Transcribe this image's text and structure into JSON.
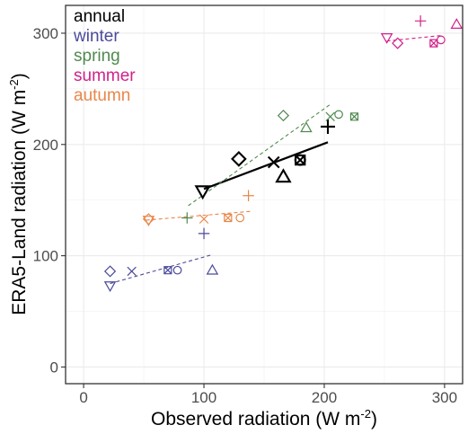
{
  "chart_data": {
    "type": "scatter",
    "xlabel": "Observed radiation (W m",
    "xlabel_sup": "-2",
    "xlabel_end": ")",
    "ylabel": "ERA5-Land radiation (W m",
    "ylabel_sup": "-2",
    "ylabel_end": ")",
    "xlim": [
      -15,
      315
    ],
    "ylim": [
      -15,
      325
    ],
    "x_ticks": [
      0,
      100,
      200,
      300
    ],
    "y_ticks": [
      0,
      100,
      200,
      300
    ],
    "grid": true,
    "legend_placement": "top-left",
    "series": [
      {
        "name": "annual",
        "color": "#000000",
        "fit_style": "solid",
        "fit": [
          [
            100,
            160
          ],
          [
            203,
            202
          ]
        ],
        "points": [
          {
            "x": 99,
            "y": 158,
            "shape": "triangle-down"
          },
          {
            "x": 129,
            "y": 187,
            "shape": "diamond"
          },
          {
            "x": 158,
            "y": 184,
            "shape": "x"
          },
          {
            "x": 166,
            "y": 171,
            "shape": "triangle-up"
          },
          {
            "x": 180,
            "y": 186,
            "shape": "circle"
          },
          {
            "x": 180,
            "y": 186,
            "shape": "square-x"
          },
          {
            "x": 203,
            "y": 216,
            "shape": "plus"
          }
        ]
      },
      {
        "name": "winter",
        "color": "#4b4a9a",
        "fit_style": "dashed",
        "fit": [
          [
            22,
            75
          ],
          [
            107,
            101
          ]
        ],
        "points": [
          {
            "x": 22,
            "y": 86,
            "shape": "diamond"
          },
          {
            "x": 22,
            "y": 73,
            "shape": "triangle-down"
          },
          {
            "x": 40,
            "y": 86,
            "shape": "x"
          },
          {
            "x": 70,
            "y": 87,
            "shape": "square-x"
          },
          {
            "x": 78,
            "y": 87,
            "shape": "circle"
          },
          {
            "x": 100,
            "y": 120,
            "shape": "plus"
          },
          {
            "x": 107,
            "y": 87,
            "shape": "triangle-up"
          }
        ]
      },
      {
        "name": "spring",
        "color": "#508a4f",
        "fit_style": "dashed",
        "fit": [
          [
            87,
            145
          ],
          [
            205,
            236
          ]
        ],
        "points": [
          {
            "x": 86,
            "y": 134,
            "shape": "plus"
          },
          {
            "x": 166,
            "y": 226,
            "shape": "diamond"
          },
          {
            "x": 185,
            "y": 215,
            "shape": "triangle-up"
          },
          {
            "x": 205,
            "y": 225,
            "shape": "x"
          },
          {
            "x": 212,
            "y": 227,
            "shape": "circle"
          },
          {
            "x": 225,
            "y": 225,
            "shape": "square-x"
          }
        ]
      },
      {
        "name": "summer",
        "color": "#d1228a",
        "fit_style": "dashed",
        "fit": [
          [
            252,
            293
          ],
          [
            298,
            298
          ]
        ],
        "points": [
          {
            "x": 252,
            "y": 296,
            "shape": "triangle-down"
          },
          {
            "x": 261,
            "y": 291,
            "shape": "diamond"
          },
          {
            "x": 280,
            "y": 311,
            "shape": "plus"
          },
          {
            "x": 291,
            "y": 291,
            "shape": "square-x"
          },
          {
            "x": 297,
            "y": 294,
            "shape": "circle"
          },
          {
            "x": 310,
            "y": 308,
            "shape": "triangle-up"
          }
        ]
      },
      {
        "name": "autumn",
        "color": "#e8874a",
        "fit_style": "dashed",
        "fit": [
          [
            52,
            132
          ],
          [
            140,
            140
          ]
        ],
        "points": [
          {
            "x": 54,
            "y": 133,
            "shape": "diamond"
          },
          {
            "x": 54,
            "y": 132,
            "shape": "triangle-down"
          },
          {
            "x": 100,
            "y": 133,
            "shape": "x"
          },
          {
            "x": 120,
            "y": 134,
            "shape": "square-x"
          },
          {
            "x": 130,
            "y": 134,
            "shape": "circle"
          },
          {
            "x": 137,
            "y": 154,
            "shape": "plus"
          }
        ]
      }
    ]
  }
}
